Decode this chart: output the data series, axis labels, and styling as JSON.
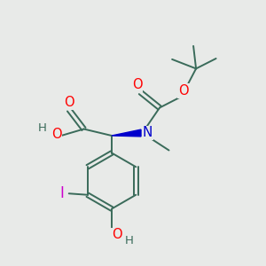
{
  "bg_color": "#e8eae8",
  "bond_color": "#3a6b5a",
  "bond_lw": 1.4,
  "atom_colors": {
    "O": "#ff0000",
    "N": "#0000cc",
    "I": "#cc00cc",
    "C": "#3a6b5a"
  },
  "fs": 10.5
}
